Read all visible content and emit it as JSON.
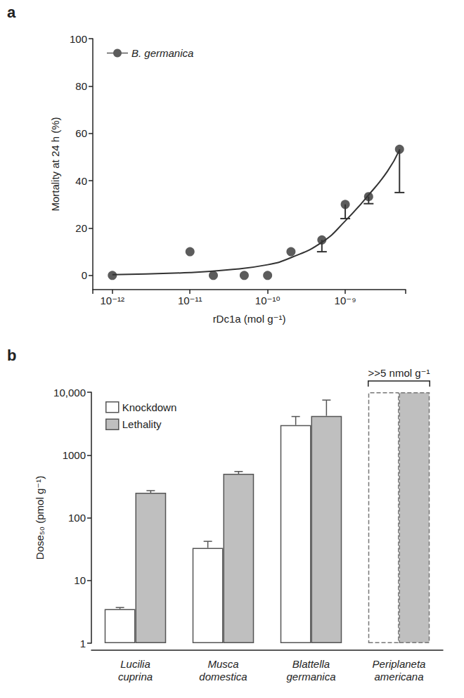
{
  "chart_data": [
    {
      "type": "scatter",
      "panel": "a",
      "x": [
        1e-12,
        1e-11,
        2e-11,
        5e-11,
        1e-10,
        2e-10,
        5e-10,
        1e-09,
        2e-09,
        5e-09
      ],
      "series": [
        {
          "name": "B. germanica",
          "color": "#333333",
          "marker": "circle",
          "values": [
            0,
            10,
            0,
            0,
            0,
            10,
            15,
            30,
            33.3,
            53.3
          ],
          "error_minus": [
            null,
            null,
            null,
            null,
            null,
            null,
            5,
            6,
            3,
            18.3
          ],
          "fit": {
            "x": [
              1e-12,
              1e-11,
              3e-11,
              1e-10,
              2e-10,
              5e-10,
              1e-09,
              2e-09,
              3.5e-09,
              5e-09
            ],
            "values": [
              0.3,
              1.2,
              2.3,
              4.5,
              7.5,
              14,
              23,
              34,
              44,
              53
            ]
          }
        }
      ],
      "x_label": "rDc1a (mol g⁻¹)",
      "y_label": "Mortality at 24 h (%)",
      "log": "x",
      "xlim": [
        5.6e-13,
        6e-09
      ],
      "xticks": [
        {
          "value": 1e-12,
          "label": "10⁻¹²"
        },
        {
          "value": 1e-11,
          "label": "10⁻¹¹"
        },
        {
          "value": 1e-10,
          "label": "10⁻¹⁰"
        },
        {
          "value": 1e-09,
          "label": "10⁻⁹"
        }
      ],
      "ylim": [
        -6,
        100
      ],
      "yticks": [
        0,
        20,
        40,
        60,
        80,
        100
      ],
      "grid": false,
      "legend": "upper left"
    },
    {
      "type": "bar",
      "panel": "b",
      "categories": [
        "Lucilia cuprina",
        "Musca domestica",
        "Blattella germanica",
        "Periplaneta americana"
      ],
      "series": [
        {
          "name": "Knockdown",
          "color": "#ffffff",
          "values": [
            3.5,
            33,
            3000,
            10000
          ],
          "error_plus": [
            0.2,
            9,
            1100,
            null
          ]
        },
        {
          "name": "Lethality",
          "color": "#bfbfbf",
          "values": [
            250,
            500,
            4200,
            10000
          ],
          "error_plus": [
            20,
            45,
            3300,
            null
          ]
        }
      ],
      "y_label": "Dose₅₀ (pmol g⁻¹)",
      "log": "y",
      "ylim": [
        1,
        10000
      ],
      "yticks": [
        1,
        10,
        100,
        1000,
        {
          "value": 10000,
          "label": "10,000"
        }
      ],
      "annotations": [
        {
          "text": ">>5 nmol g⁻¹",
          "category": "Periplaneta americana"
        }
      ],
      "grid": false,
      "legend": "upper left"
    }
  ]
}
